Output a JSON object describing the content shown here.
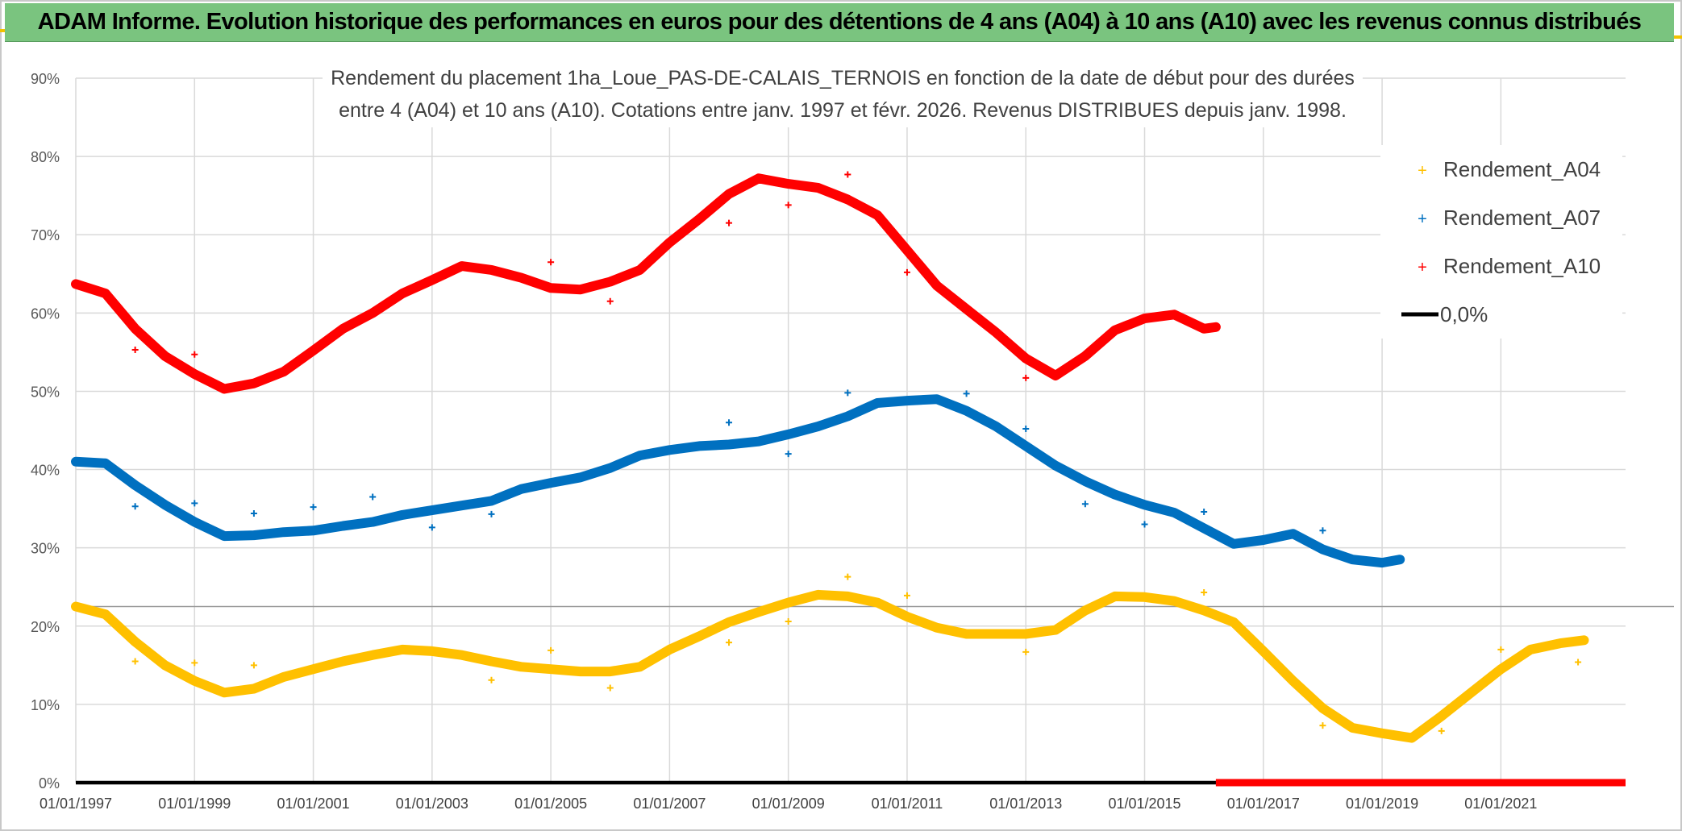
{
  "banner": {
    "title": "ADAM Informe. Evolution historique des performances en euros pour des détentions de 4 ans (A04) à 10 ans (A10) avec les revenus connus distribués"
  },
  "chart_data": {
    "type": "scatter",
    "title_lines": [
      "Rendement du placement 1ha_Loue_PAS-DE-CALAIS_TERNOIS en fonction de la date de début pour des durées",
      "entre 4 (A04) et 10 ans (A10). Cotations entre janv. 1997 et févr. 2026. Revenus DISTRIBUES depuis janv. 1998."
    ],
    "xlabel": "",
    "ylabel": "",
    "x_range": [
      1997,
      2023.1
    ],
    "ylim": [
      0,
      0.9
    ],
    "y_ticks": [
      0,
      0.1,
      0.2,
      0.3,
      0.4,
      0.5,
      0.6,
      0.7,
      0.8,
      0.9
    ],
    "y_tick_labels": [
      "0%",
      "10%",
      "20%",
      "30%",
      "40%",
      "50%",
      "60%",
      "70%",
      "80%",
      "90%"
    ],
    "x_ticks": [
      1997,
      1999,
      2001,
      2003,
      2005,
      2007,
      2009,
      2011,
      2013,
      2015,
      2017,
      2019,
      2021
    ],
    "x_tick_labels": [
      "01/01/1997",
      "01/01/1999",
      "01/01/2001",
      "01/01/2003",
      "01/01/2005",
      "01/01/2007",
      "01/01/2009",
      "01/01/2011",
      "01/01/2013",
      "01/01/2015",
      "01/01/2017",
      "01/01/2019",
      "01/01/2021"
    ],
    "grid": true,
    "legend_position": "top-right",
    "series": [
      {
        "name": "Rendement_A04",
        "color": "#ffc000",
        "x": [
          1997.0,
          1997.5,
          1998.0,
          1998.5,
          1999.0,
          1999.5,
          2000.0,
          2000.5,
          2001.0,
          2001.5,
          2002.0,
          2002.5,
          2003.0,
          2003.5,
          2004.0,
          2004.5,
          2005.0,
          2005.5,
          2006.0,
          2006.5,
          2007.0,
          2007.5,
          2008.0,
          2008.5,
          2009.0,
          2009.5,
          2010.0,
          2010.5,
          2011.0,
          2011.5,
          2012.0,
          2012.5,
          2013.0,
          2013.5,
          2014.0,
          2014.5,
          2015.0,
          2015.5,
          2016.0,
          2016.5,
          2017.0,
          2017.5,
          2018.0,
          2018.5,
          2019.0,
          2019.5,
          2020.0,
          2020.5,
          2021.0,
          2021.5,
          2022.0,
          2022.4
        ],
        "values": [
          0.225,
          0.215,
          0.18,
          0.15,
          0.13,
          0.115,
          0.12,
          0.135,
          0.145,
          0.155,
          0.163,
          0.17,
          0.168,
          0.163,
          0.155,
          0.148,
          0.145,
          0.142,
          0.142,
          0.148,
          0.17,
          0.187,
          0.205,
          0.218,
          0.23,
          0.24,
          0.238,
          0.23,
          0.212,
          0.198,
          0.19,
          0.19,
          0.19,
          0.195,
          0.22,
          0.238,
          0.237,
          0.232,
          0.22,
          0.205,
          0.168,
          0.13,
          0.095,
          0.07,
          0.063,
          0.057,
          0.085,
          0.115,
          0.145,
          0.17,
          0.178,
          0.182
        ],
        "outliers_x": [
          1998.0,
          1999.0,
          2000.0,
          2004.0,
          2005.0,
          2006.0,
          2008.0,
          2009.0,
          2010.0,
          2011.0,
          2013.0,
          2016.0,
          2018.0,
          2020.0,
          2021.0,
          2022.3
        ],
        "outliers_y": [
          0.155,
          0.153,
          0.15,
          0.131,
          0.169,
          0.121,
          0.179,
          0.206,
          0.263,
          0.239,
          0.167,
          0.243,
          0.073,
          0.066,
          0.17,
          0.154
        ]
      },
      {
        "name": "Rendement_A07",
        "color": "#0070c0",
        "x": [
          1997.0,
          1997.5,
          1998.0,
          1998.5,
          1999.0,
          1999.5,
          2000.0,
          2000.5,
          2001.0,
          2001.5,
          2002.0,
          2002.5,
          2003.0,
          2003.5,
          2004.0,
          2004.5,
          2005.0,
          2005.5,
          2006.0,
          2006.5,
          2007.0,
          2007.5,
          2008.0,
          2008.5,
          2009.0,
          2009.5,
          2010.0,
          2010.5,
          2011.0,
          2011.5,
          2012.0,
          2012.5,
          2013.0,
          2013.5,
          2014.0,
          2014.5,
          2015.0,
          2015.5,
          2016.0,
          2016.5,
          2017.0,
          2017.5,
          2018.0,
          2018.5,
          2019.0,
          2019.3
        ],
        "values": [
          0.41,
          0.408,
          0.38,
          0.355,
          0.333,
          0.315,
          0.316,
          0.32,
          0.322,
          0.328,
          0.333,
          0.342,
          0.348,
          0.354,
          0.36,
          0.375,
          0.383,
          0.39,
          0.402,
          0.418,
          0.425,
          0.43,
          0.432,
          0.436,
          0.445,
          0.455,
          0.468,
          0.485,
          0.488,
          0.49,
          0.475,
          0.455,
          0.43,
          0.405,
          0.385,
          0.368,
          0.355,
          0.345,
          0.325,
          0.305,
          0.31,
          0.318,
          0.298,
          0.285,
          0.281,
          0.285
        ],
        "outliers_x": [
          1998.0,
          1999.0,
          2000.0,
          2001.0,
          2002.0,
          2003.0,
          2004.0,
          2008.0,
          2009.0,
          2010.0,
          2012.0,
          2013.0,
          2014.0,
          2015.0,
          2016.0,
          2018.0
        ],
        "outliers_y": [
          0.353,
          0.357,
          0.344,
          0.352,
          0.365,
          0.326,
          0.343,
          0.46,
          0.42,
          0.498,
          0.497,
          0.452,
          0.356,
          0.33,
          0.346,
          0.322
        ]
      },
      {
        "name": "Rendement_A10",
        "color": "#ff0000",
        "x": [
          1997.0,
          1997.5,
          1998.0,
          1998.5,
          1999.0,
          1999.5,
          2000.0,
          2000.5,
          2001.0,
          2001.5,
          2002.0,
          2002.5,
          2003.0,
          2003.5,
          2004.0,
          2004.5,
          2005.0,
          2005.5,
          2006.0,
          2006.5,
          2007.0,
          2007.5,
          2008.0,
          2008.5,
          2009.0,
          2009.5,
          2010.0,
          2010.5,
          2011.0,
          2011.5,
          2012.0,
          2012.5,
          2013.0,
          2013.5,
          2014.0,
          2014.5,
          2015.0,
          2015.5,
          2016.0,
          2016.2
        ],
        "values": [
          0.637,
          0.625,
          0.58,
          0.545,
          0.522,
          0.503,
          0.51,
          0.525,
          0.552,
          0.58,
          0.6,
          0.625,
          0.642,
          0.66,
          0.655,
          0.645,
          0.632,
          0.63,
          0.64,
          0.655,
          0.69,
          0.72,
          0.752,
          0.772,
          0.765,
          0.76,
          0.745,
          0.725,
          0.68,
          0.635,
          0.605,
          0.575,
          0.542,
          0.52,
          0.545,
          0.578,
          0.593,
          0.598,
          0.58,
          0.582
        ],
        "outliers_x": [
          1998.0,
          1999.0,
          2005.0,
          2006.0,
          2008.0,
          2009.0,
          2010.0,
          2011.0,
          2013.0
        ],
        "outliers_y": [
          0.553,
          0.547,
          0.665,
          0.615,
          0.715,
          0.738,
          0.777,
          0.652,
          0.517
        ]
      },
      {
        "name": "0,0%",
        "color": "#000000",
        "x": [
          1997.0,
          2023.1
        ],
        "values": [
          0,
          0
        ]
      }
    ],
    "zero_marker_band": {
      "x_start": 2016.2,
      "x_end": 2023.1,
      "value": 0,
      "color": "#ff0000"
    },
    "reference_line": {
      "value": 0.225,
      "color": "#9a9a9a"
    },
    "legend": [
      "Rendement_A04",
      "Rendement_A07",
      "Rendement_A10",
      "0,0%"
    ]
  }
}
